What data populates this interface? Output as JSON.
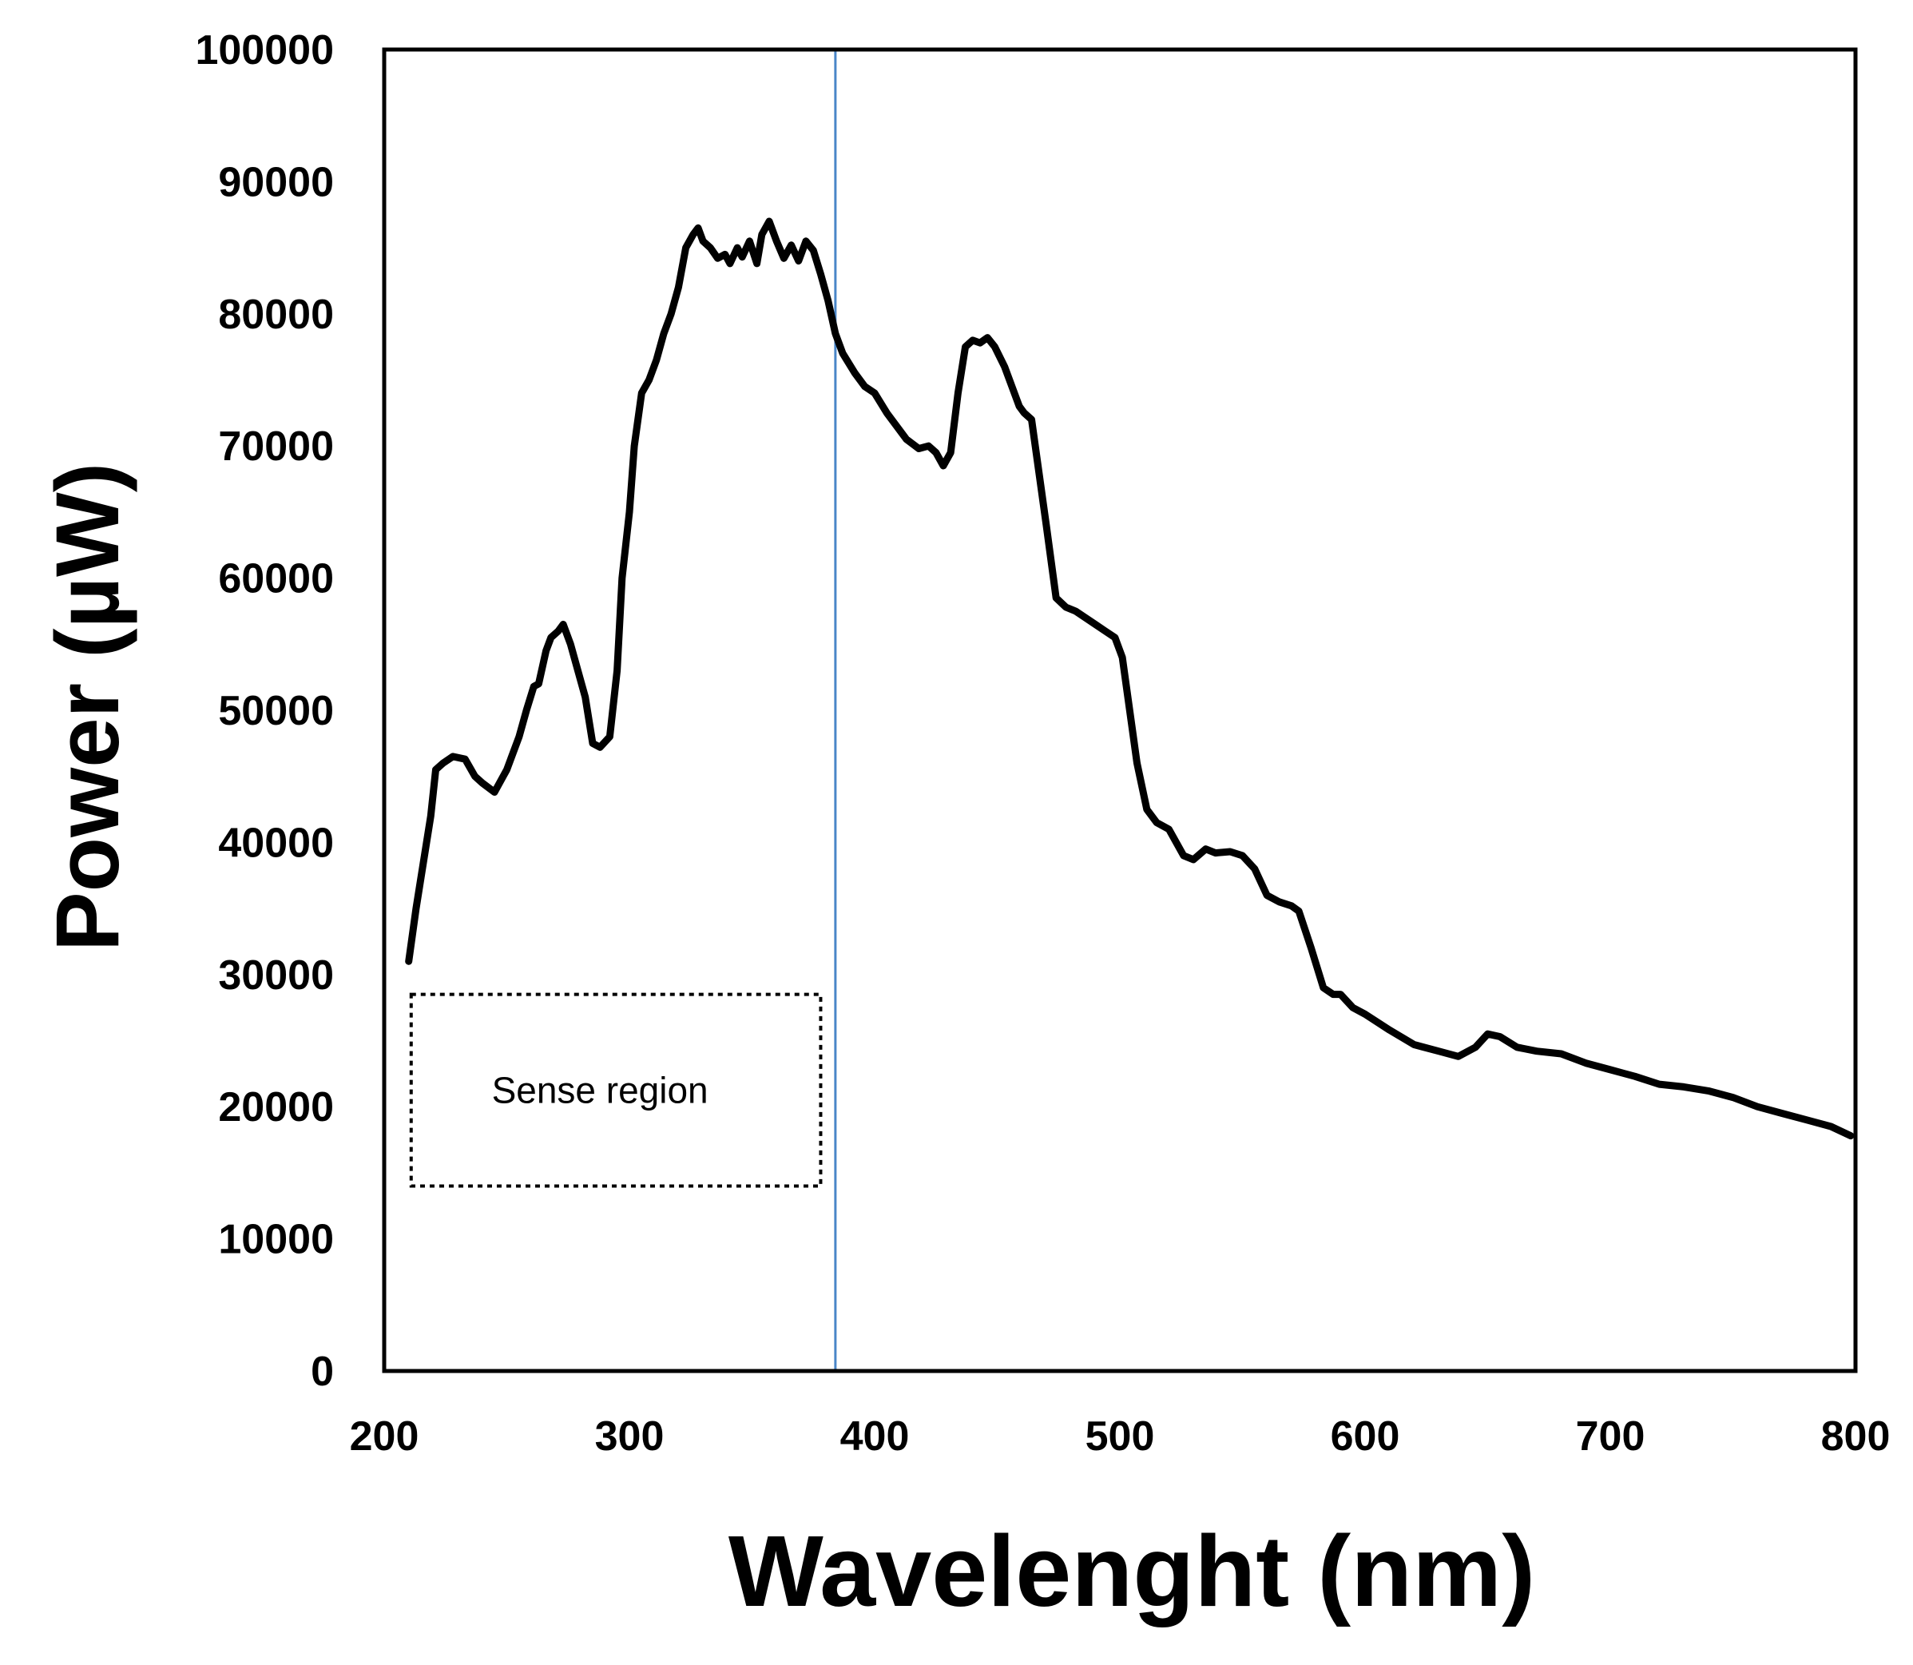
{
  "chart_data": {
    "type": "line",
    "title": "",
    "xlabel": "Wavelenght (nm)",
    "ylabel": "Power (µW)",
    "xlim": [
      200,
      800
    ],
    "ylim": [
      0,
      100000
    ],
    "xticks": [
      "200",
      "300",
      "400",
      "500",
      "600",
      "700",
      "800"
    ],
    "yticks": [
      "0",
      "10000",
      "20000",
      "30000",
      "40000",
      "50000",
      "60000",
      "70000",
      "80000",
      "90000",
      "100000"
    ],
    "grid": false,
    "legend": "none",
    "colors": {
      "series": "#000000",
      "marker_line": "#4a86c8",
      "frame": "#000000"
    },
    "series": [
      {
        "name": "Power",
        "x": [
          210,
          213,
          216,
          219,
          221,
          224,
          228,
          233,
          237,
          240,
          245,
          250,
          255,
          258,
          261,
          263,
          266,
          268,
          271,
          273,
          276,
          279,
          282,
          285,
          288,
          292,
          295,
          297,
          300,
          302,
          305,
          308,
          311,
          314,
          317,
          320,
          323,
          326,
          328,
          330,
          333,
          336,
          339,
          341,
          344,
          346,
          349,
          352,
          354,
          357,
          360,
          363,
          366,
          369,
          372,
          375,
          378,
          381,
          384,
          387,
          392,
          396,
          400,
          405,
          409,
          413,
          418,
          422,
          425,
          428,
          431,
          434,
          437,
          440,
          443,
          446,
          449,
          453,
          456,
          459,
          461,
          464,
          467,
          470,
          474,
          478,
          482,
          486,
          490,
          494,
          498,
          501,
          504,
          507,
          511,
          515,
          520,
          523,
          526,
          530,
          535,
          539,
          545,
          550,
          555,
          560,
          565,
          570,
          573,
          578,
          583,
          587,
          590,
          595,
          600,
          610,
          620,
          630,
          638,
          645,
          650,
          655,
          662,
          670,
          680,
          690,
          700,
          710,
          720,
          730,
          740,
          750,
          760,
          770,
          780,
          790,
          798
        ],
        "y": [
          31000,
          35000,
          38500,
          42000,
          45500,
          46000,
          46500,
          46300,
          45000,
          44500,
          43800,
          45500,
          48000,
          50000,
          51800,
          52000,
          54500,
          55500,
          56000,
          56500,
          55000,
          53000,
          51000,
          47500,
          47200,
          48000,
          53000,
          60000,
          65000,
          70000,
          74000,
          75000,
          76500,
          78500,
          80000,
          82000,
          85000,
          86000,
          86500,
          85500,
          85000,
          84200,
          84500,
          83800,
          85000,
          84300,
          85500,
          83800,
          86000,
          87000,
          85500,
          84200,
          85200,
          84000,
          85500,
          84800,
          83000,
          81000,
          78500,
          77000,
          75500,
          74500,
          74000,
          72500,
          71500,
          70500,
          69800,
          70000,
          69500,
          68500,
          69500,
          74000,
          77500,
          78000,
          77800,
          78200,
          77500,
          76000,
          74500,
          73000,
          72500,
          72000,
          68000,
          64000,
          58500,
          57800,
          57500,
          57000,
          56500,
          56000,
          55500,
          54000,
          50000,
          46000,
          42500,
          41500,
          41000,
          40000,
          39000,
          38700,
          39500,
          39200,
          39300,
          39000,
          38000,
          36000,
          35500,
          35200,
          34800,
          32000,
          29000,
          28500,
          28500,
          27500,
          27000,
          25800,
          24700,
          24200,
          23800,
          24500,
          25500,
          25300,
          24500,
          24200,
          24000,
          23300,
          22800,
          22300,
          21700,
          21500,
          21200,
          20700,
          20000,
          19500,
          19000,
          18500,
          17800
        ]
      }
    ],
    "vertical_marker": {
      "x": 384
    },
    "annotations": [
      {
        "text": "Sense region",
        "x_range": [
          211,
          378
        ],
        "y_range": [
          14000,
          28500
        ],
        "style": "dotted box"
      }
    ]
  }
}
